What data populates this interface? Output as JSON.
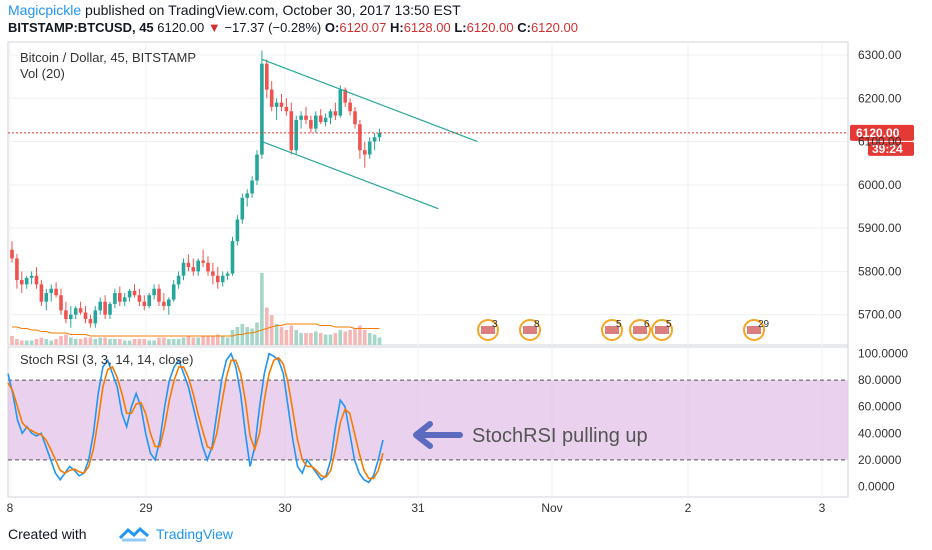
{
  "header": {
    "user": "Magicpickle",
    "published": "published on TradingView.com, October 30, 2017 13:50 EST",
    "symbol": "BITSTAMP:BTCUSD, 45",
    "price": "6120.00",
    "change": "−17.37 (−0.28%)",
    "o_label": "O:",
    "o_value": "6120.07",
    "h_label": "H:",
    "h_value": "6128.00",
    "l_label": "L:",
    "l_value": "6120.00",
    "c_label": "C:",
    "c_value": "6120.00"
  },
  "footer": {
    "created": "Created with",
    "brand": "TradingView"
  },
  "colors": {
    "up": "#26a69a",
    "down": "#ef5350",
    "channel": "#26a69a",
    "stoch_k": "#2196f3",
    "stoch_d": "#f57c00",
    "band": "#e1bee7",
    "arrow": "#5c6bc0",
    "price_badge": "#e53935"
  },
  "chart_data": [
    {
      "type": "candlestick",
      "title": "Bitcoin / Dollar, 45, BITSTAMP",
      "indicator_label": "Vol (20)",
      "ylim": [
        5630,
        6330
      ],
      "y_ticks": [
        "6300.00",
        "6200.00",
        "6100.00",
        "6000.00",
        "5900.00",
        "5800.00",
        "5700.00"
      ],
      "y_tick_values": [
        6300,
        6200,
        6100,
        6000,
        5900,
        5800,
        5700
      ],
      "last_price_label": "6120.00",
      "countdown_label": "39:24",
      "last_price": 6120,
      "candles": [
        [
          5850,
          5870,
          5820,
          5830
        ],
        [
          5830,
          5840,
          5760,
          5780
        ],
        [
          5780,
          5800,
          5750,
          5770
        ],
        [
          5770,
          5790,
          5760,
          5785
        ],
        [
          5785,
          5800,
          5770,
          5790
        ],
        [
          5790,
          5810,
          5760,
          5770
        ],
        [
          5770,
          5780,
          5720,
          5730
        ],
        [
          5730,
          5760,
          5710,
          5750
        ],
        [
          5750,
          5770,
          5730,
          5760
        ],
        [
          5760,
          5775,
          5740,
          5745
        ],
        [
          5745,
          5760,
          5700,
          5710
        ],
        [
          5710,
          5730,
          5680,
          5690
        ],
        [
          5690,
          5720,
          5670,
          5700
        ],
        [
          5700,
          5720,
          5690,
          5715
        ],
        [
          5715,
          5730,
          5700,
          5705
        ],
        [
          5705,
          5720,
          5680,
          5690
        ],
        [
          5690,
          5700,
          5670,
          5680
        ],
        [
          5680,
          5720,
          5670,
          5710
        ],
        [
          5710,
          5740,
          5700,
          5730
        ],
        [
          5730,
          5745,
          5690,
          5700
        ],
        [
          5700,
          5730,
          5690,
          5725
        ],
        [
          5725,
          5760,
          5715,
          5750
        ],
        [
          5750,
          5765,
          5720,
          5730
        ],
        [
          5730,
          5750,
          5720,
          5740
        ],
        [
          5740,
          5760,
          5730,
          5755
        ],
        [
          5755,
          5770,
          5740,
          5745
        ],
        [
          5745,
          5760,
          5720,
          5730
        ],
        [
          5730,
          5745,
          5710,
          5720
        ],
        [
          5720,
          5750,
          5715,
          5745
        ],
        [
          5745,
          5770,
          5735,
          5760
        ],
        [
          5760,
          5770,
          5720,
          5730
        ],
        [
          5730,
          5750,
          5710,
          5720
        ],
        [
          5720,
          5740,
          5700,
          5735
        ],
        [
          5735,
          5780,
          5730,
          5770
        ],
        [
          5770,
          5800,
          5760,
          5790
        ],
        [
          5790,
          5830,
          5780,
          5820
        ],
        [
          5820,
          5840,
          5800,
          5810
        ],
        [
          5810,
          5830,
          5790,
          5800
        ],
        [
          5800,
          5830,
          5790,
          5825
        ],
        [
          5825,
          5850,
          5810,
          5820
        ],
        [
          5820,
          5835,
          5790,
          5800
        ],
        [
          5800,
          5820,
          5770,
          5790
        ],
        [
          5790,
          5810,
          5760,
          5775
        ],
        [
          5775,
          5800,
          5765,
          5790
        ],
        [
          5790,
          5800,
          5780,
          5795
        ],
        [
          5795,
          5880,
          5790,
          5870
        ],
        [
          5870,
          5930,
          5860,
          5920
        ],
        [
          5920,
          5980,
          5910,
          5970
        ],
        [
          5970,
          5990,
          5950,
          5980
        ],
        [
          5980,
          6020,
          5970,
          6010
        ],
        [
          6010,
          6080,
          6000,
          6070
        ],
        [
          6070,
          6310,
          6060,
          6280
        ],
        [
          6280,
          6290,
          6200,
          6220
        ],
        [
          6220,
          6240,
          6170,
          6180
        ],
        [
          6180,
          6200,
          6150,
          6190
        ],
        [
          6190,
          6210,
          6170,
          6180
        ],
        [
          6180,
          6200,
          6160,
          6170
        ],
        [
          6170,
          6190,
          6070,
          6080
        ],
        [
          6080,
          6160,
          6070,
          6150
        ],
        [
          6150,
          6170,
          6130,
          6160
        ],
        [
          6160,
          6180,
          6140,
          6150
        ],
        [
          6150,
          6160,
          6120,
          6130
        ],
        [
          6130,
          6170,
          6120,
          6160
        ],
        [
          6160,
          6175,
          6140,
          6145
        ],
        [
          6145,
          6165,
          6135,
          6155
        ],
        [
          6155,
          6175,
          6140,
          6170
        ],
        [
          6170,
          6190,
          6150,
          6160
        ],
        [
          6160,
          6230,
          6155,
          6220
        ],
        [
          6220,
          6225,
          6180,
          6190
        ],
        [
          6190,
          6200,
          6160,
          6170
        ],
        [
          6170,
          6180,
          6130,
          6140
        ],
        [
          6140,
          6150,
          6060,
          6080
        ],
        [
          6080,
          6100,
          6040,
          6070
        ],
        [
          6070,
          6110,
          6060,
          6100
        ],
        [
          6100,
          6120,
          6080,
          6110
        ],
        [
          6110,
          6130,
          6100,
          6120
        ]
      ],
      "volumes": [
        6,
        4,
        3,
        3,
        3,
        4,
        5,
        4,
        3,
        4,
        6,
        7,
        5,
        4,
        4,
        5,
        5,
        4,
        5,
        5,
        4,
        4,
        4,
        3,
        3,
        4,
        4,
        4,
        3,
        3,
        5,
        5,
        4,
        4,
        4,
        5,
        6,
        5,
        5,
        6,
        6,
        6,
        7,
        6,
        5,
        10,
        12,
        14,
        12,
        11,
        15,
        48,
        25,
        20,
        14,
        12,
        10,
        13,
        10,
        8,
        8,
        8,
        9,
        8,
        7,
        7,
        8,
        10,
        9,
        10,
        11,
        13,
        10,
        8,
        7,
        5
      ],
      "volume_ma": [
        12,
        12,
        11,
        11,
        10,
        10,
        9,
        9,
        8,
        8,
        8,
        8,
        7,
        7,
        7,
        7,
        6,
        6,
        6,
        6,
        6,
        6,
        6,
        6,
        6,
        6,
        6,
        6,
        6,
        6,
        6,
        6,
        6,
        6,
        6,
        6,
        6,
        6,
        6,
        6,
        6,
        6,
        6,
        6,
        6,
        6,
        7,
        7,
        8,
        8,
        9,
        10,
        11,
        12,
        13,
        13,
        14,
        14,
        14,
        14,
        14,
        14,
        14,
        13,
        13,
        13,
        12,
        12,
        12,
        12,
        11,
        11,
        11,
        11,
        11,
        11
      ],
      "channel": {
        "upper": [
          [
            6290,
            51
          ],
          [
            6100,
            95
          ]
        ],
        "lower": [
          [
            6100,
            51
          ],
          [
            5945,
            87
          ]
        ]
      },
      "event_badges": [
        "3",
        "8",
        "5",
        "6",
        "5",
        "29"
      ]
    },
    {
      "type": "line",
      "title": "Stoch RSI (3, 3, 14, 14, close)",
      "ylim": [
        -8,
        105
      ],
      "y_ticks": [
        "100.0000",
        "80.0000",
        "60.0000",
        "40.0000",
        "20.0000",
        "0.0000"
      ],
      "y_tick_values": [
        100,
        80,
        60,
        40,
        20,
        0
      ],
      "band": [
        20,
        80
      ],
      "x_ticks": [
        "8",
        "29",
        "30",
        "31",
        "Nov",
        "2",
        "3"
      ],
      "series": [
        {
          "name": "K",
          "values": [
            85,
            70,
            50,
            40,
            45,
            40,
            38,
            40,
            30,
            20,
            10,
            5,
            10,
            15,
            12,
            8,
            10,
            20,
            40,
            70,
            90,
            95,
            85,
            75,
            55,
            45,
            60,
            70,
            60,
            40,
            25,
            20,
            35,
            60,
            80,
            90,
            95,
            85,
            75,
            60,
            45,
            30,
            20,
            30,
            55,
            80,
            95,
            100,
            90,
            70,
            40,
            15,
            30,
            60,
            85,
            100,
            98,
            95,
            85,
            60,
            35,
            15,
            10,
            20,
            15,
            10,
            5,
            8,
            20,
            45,
            65,
            60,
            40,
            20,
            10,
            5,
            3,
            8,
            20,
            35
          ]
        },
        {
          "name": "D",
          "values": [
            78,
            72,
            60,
            48,
            44,
            42,
            40,
            39,
            35,
            28,
            20,
            12,
            10,
            12,
            13,
            11,
            10,
            15,
            28,
            50,
            75,
            88,
            90,
            82,
            70,
            55,
            55,
            62,
            63,
            55,
            40,
            30,
            30,
            45,
            65,
            80,
            90,
            90,
            82,
            70,
            55,
            42,
            30,
            28,
            40,
            62,
            82,
            95,
            95,
            85,
            65,
            38,
            28,
            40,
            65,
            85,
            95,
            97,
            92,
            78,
            57,
            35,
            20,
            15,
            15,
            12,
            8,
            7,
            12,
            28,
            48,
            58,
            55,
            40,
            25,
            12,
            6,
            6,
            12,
            25
          ]
        }
      ],
      "annotation": "StochRSI pulling up"
    }
  ]
}
